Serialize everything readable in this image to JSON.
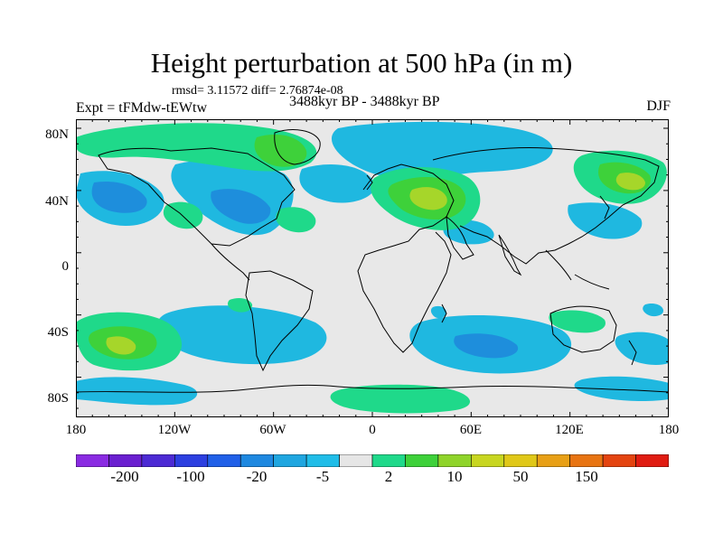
{
  "title": "Height perturbation at 500 hPa (in m)",
  "stats": "rmsd= 3.11572 diff= 2.76874e-08",
  "expt": "Expt = tFMdw-tEWtw",
  "period": "3488kyr BP - 3488kyr BP",
  "season": "DJF",
  "lat_ticks": [
    "80N",
    "40N",
    "0",
    "40S",
    "80S"
  ],
  "lon_ticks": [
    "180",
    "120W",
    "60W",
    "0",
    "60E",
    "120E",
    "180"
  ],
  "colorbar": {
    "colors": [
      "#8a2be2",
      "#6a1fd0",
      "#4c2ad4",
      "#2c3fe0",
      "#2060e8",
      "#1e88e0",
      "#1fa6e0",
      "#20bde8",
      "#e6e6e6",
      "#1fd98a",
      "#3ed13a",
      "#8fd42a",
      "#c8d620",
      "#e0c818",
      "#e8a016",
      "#e87412",
      "#e44410",
      "#e01c12"
    ],
    "labels": [
      "-200",
      "-100",
      "-20",
      "-5",
      "2",
      "10",
      "50",
      "150"
    ]
  },
  "map_colors": {
    "background": "#e8e8e8",
    "neg_light": "#1fb8e0",
    "neg_mid": "#1e8edc",
    "neg_dark": "#1f6fd8",
    "pos_light": "#1fd98a",
    "pos_mid": "#3ed13a",
    "pos_strong": "#a6d62a",
    "coast": "#000000"
  }
}
